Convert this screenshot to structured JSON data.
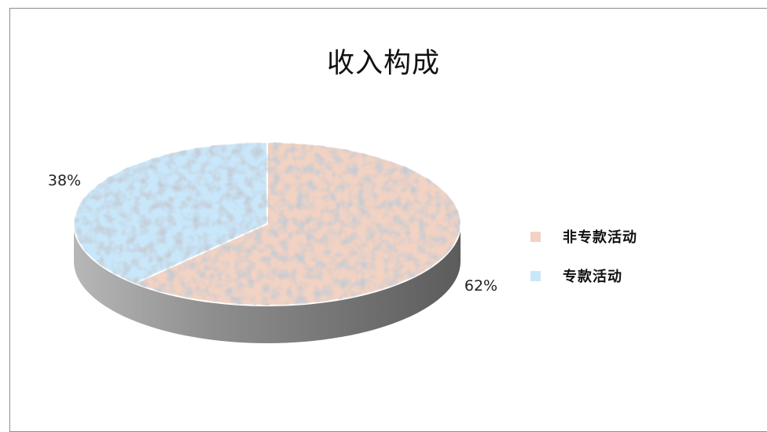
{
  "chart_data": {
    "type": "pie",
    "title": "收入构成",
    "categories": [
      "非专款活动",
      "专款活动"
    ],
    "values": [
      62,
      38
    ],
    "labels": [
      "62%",
      "38%"
    ],
    "colors": [
      "#f2d2c2",
      "#c9e7fa"
    ],
    "legend_position": "right",
    "style": "3d"
  }
}
